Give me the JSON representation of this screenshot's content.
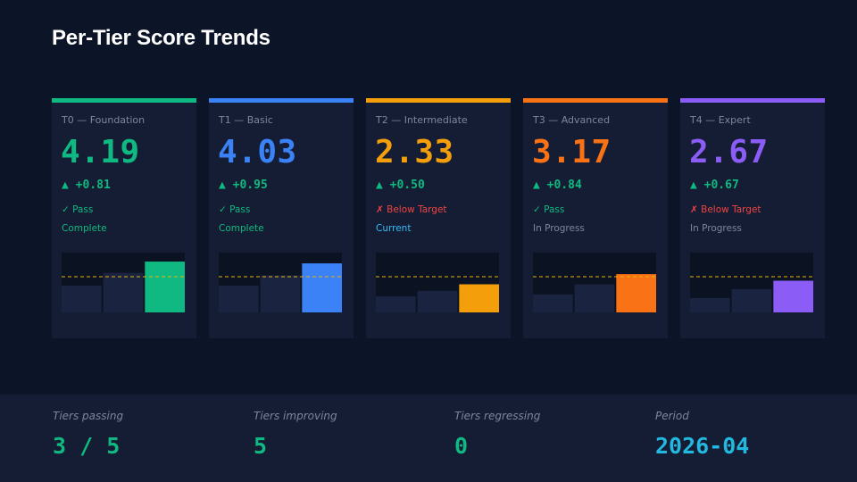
{
  "title": "Per-Tier Score Trends",
  "target_line_color": "#eab308",
  "cards": [
    {
      "label": "T0 — Foundation",
      "score": "4.19",
      "delta": "▲ +0.81",
      "status": "✓ Pass",
      "status_color": "#10b981",
      "progress": "Complete",
      "progress_color": "#10b981",
      "accent": "#10b981",
      "history": [
        0.45,
        0.66,
        0.85
      ]
    },
    {
      "label": "T1 — Basic",
      "score": "4.03",
      "delta": "▲ +0.95",
      "status": "✓ Pass",
      "status_color": "#10b981",
      "progress": "Complete",
      "progress_color": "#10b981",
      "accent": "#3b82f6",
      "history": [
        0.45,
        0.62,
        0.82
      ]
    },
    {
      "label": "T2 — Intermediate",
      "score": "2.33",
      "delta": "▲ +0.50",
      "status": "✗ Below Target",
      "status_color": "#ef4444",
      "progress": "Current",
      "progress_color": "#38bdf8",
      "accent": "#f59e0b",
      "history": [
        0.27,
        0.36,
        0.47
      ]
    },
    {
      "label": "T3 — Advanced",
      "score": "3.17",
      "delta": "▲ +0.84",
      "status": "✓ Pass",
      "status_color": "#10b981",
      "progress": "In Progress",
      "progress_color": "#7b869e",
      "accent": "#f97316",
      "history": [
        0.3,
        0.47,
        0.64
      ]
    },
    {
      "label": "T4 — Expert",
      "score": "2.67",
      "delta": "▲ +0.67",
      "status": "✗ Below Target",
      "status_color": "#ef4444",
      "progress": "In Progress",
      "progress_color": "#7b869e",
      "accent": "#8b5cf6",
      "history": [
        0.24,
        0.39,
        0.53
      ]
    }
  ],
  "footer": [
    {
      "label": "Tiers passing",
      "value": "3 / 5",
      "color": "#10b981"
    },
    {
      "label": "Tiers improving",
      "value": "5",
      "color": "#10b981"
    },
    {
      "label": "Tiers regressing",
      "value": "0",
      "color": "#10b981"
    },
    {
      "label": "Period",
      "value": "2026-04",
      "color": "#22b8e0"
    }
  ]
}
